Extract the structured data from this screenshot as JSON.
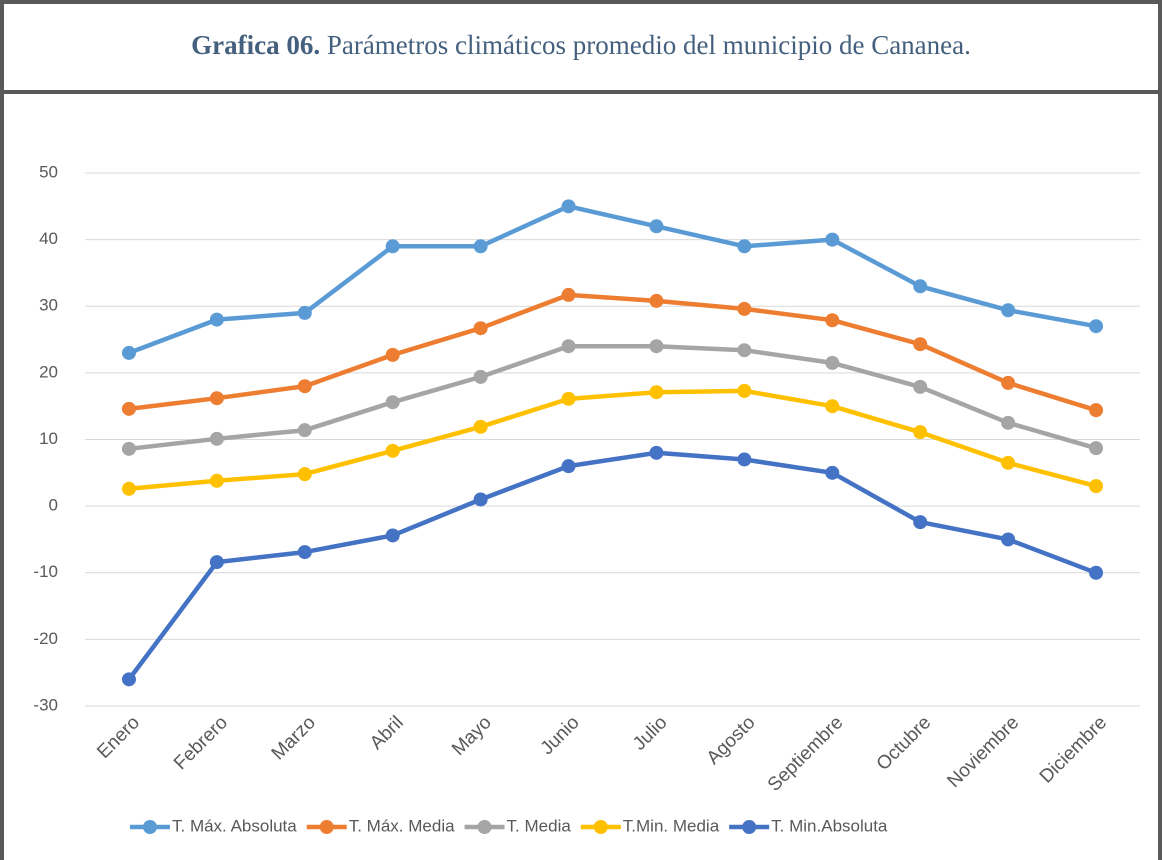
{
  "chart_data": {
    "type": "line",
    "title_prefix": "Grafica 06.",
    "title": "Parámetros climáticos promedio del municipio de Cananea.",
    "categories": [
      "Enero",
      "Febrero",
      "Marzo",
      "Abril",
      "Mayo",
      "Junio",
      "Julio",
      "Agosto",
      "Septiembre",
      "Octubre",
      "Noviembre",
      "Diciembre"
    ],
    "series": [
      {
        "name": "T. Máx. Absoluta",
        "color": "#5b9bd5",
        "values": [
          23,
          28,
          29,
          39,
          39,
          45,
          42,
          39,
          40,
          33,
          29.4,
          27
        ]
      },
      {
        "name": "T. Máx. Media",
        "color": "#ed7d31",
        "values": [
          14.6,
          16.2,
          18,
          22.7,
          26.7,
          31.7,
          30.8,
          29.6,
          27.9,
          24.3,
          18.5,
          14.4
        ]
      },
      {
        "name": "T. Media",
        "color": "#a5a5a5",
        "values": [
          8.6,
          10.1,
          11.4,
          15.6,
          19.4,
          24,
          24,
          23.4,
          21.5,
          17.9,
          12.5,
          8.7
        ]
      },
      {
        "name": "T.Min. Media",
        "color": "#ffc000",
        "values": [
          2.6,
          3.8,
          4.8,
          8.3,
          11.9,
          16.1,
          17.1,
          17.3,
          15,
          11.1,
          6.5,
          3
        ]
      },
      {
        "name": "T. Min.Absoluta",
        "color": "#4472c4",
        "values": [
          -26,
          -8.4,
          -6.9,
          -4.4,
          1,
          6,
          8,
          7,
          5,
          -2.4,
          -5,
          -10
        ]
      }
    ],
    "ylim": [
      -30,
      50
    ],
    "yticks": [
      -30,
      -20,
      -10,
      0,
      10,
      20,
      30,
      40,
      50
    ],
    "grid": true,
    "legend": "bottom"
  }
}
